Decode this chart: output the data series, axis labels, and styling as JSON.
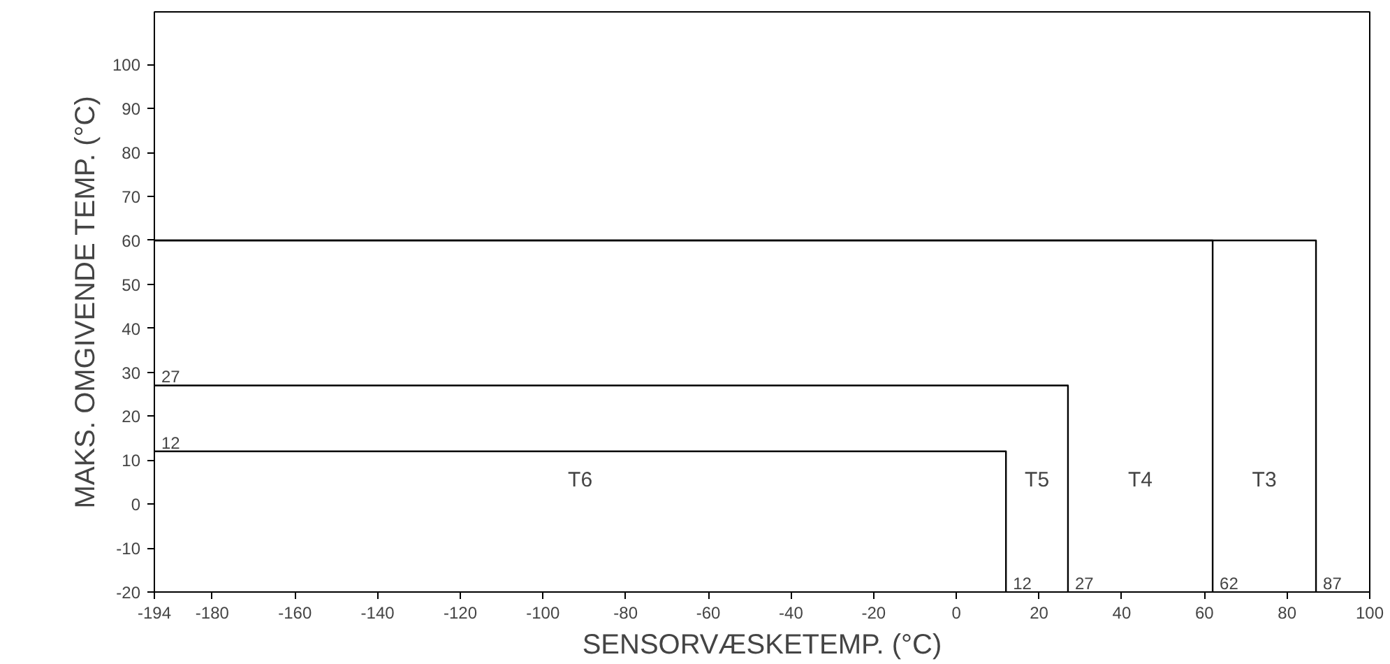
{
  "chart_data": {
    "type": "line",
    "xlabel": "SENSORVÆSKETEMP. (°C)",
    "ylabel": "MAKS. OMGIVENDE TEMP. (°C)",
    "xlim": [
      -194,
      100
    ],
    "ylim": [
      -20,
      112
    ],
    "xticks": [
      -194,
      -180,
      -160,
      -140,
      -120,
      -100,
      -80,
      -60,
      -40,
      -20,
      0,
      20,
      40,
      60,
      80,
      100
    ],
    "yticks": [
      -20,
      -10,
      0,
      10,
      20,
      30,
      40,
      50,
      60,
      70,
      80,
      90,
      100
    ],
    "grid": false,
    "marker": "none",
    "line_style": "solid",
    "series": [
      {
        "name": "T6",
        "color": "#000000",
        "x": [
          -194,
          12,
          12
        ],
        "values": [
          12,
          12,
          -20
        ]
      },
      {
        "name": "T5",
        "color": "#000000",
        "x": [
          -194,
          27,
          27
        ],
        "values": [
          27,
          27,
          -20
        ]
      },
      {
        "name": "T4",
        "color": "#000000",
        "x": [
          -194,
          62,
          62
        ],
        "values": [
          60,
          60,
          -20
        ]
      },
      {
        "name": "T3",
        "color": "#000000",
        "x": [
          -194,
          87,
          87
        ],
        "values": [
          60,
          60,
          -20
        ]
      }
    ],
    "annotations": [
      {
        "text": "12",
        "x": 12,
        "y": -20
      },
      {
        "text": "27",
        "x": 27,
        "y": -20
      },
      {
        "text": "62",
        "x": 62,
        "y": -20
      },
      {
        "text": "87",
        "x": 87,
        "y": -20
      },
      {
        "text": "27",
        "x": -194,
        "y": 27
      },
      {
        "text": "12",
        "x": -194,
        "y": 12
      }
    ]
  }
}
